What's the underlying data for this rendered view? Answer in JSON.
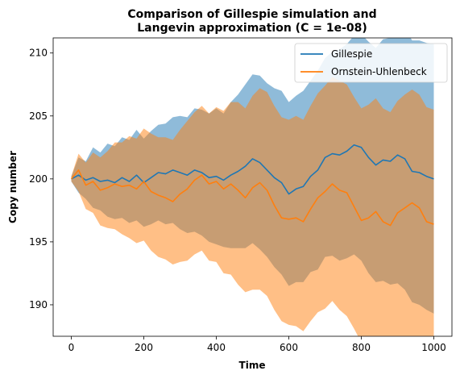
{
  "chart_data": {
    "type": "line",
    "title_line1": "Comparison of Gillespie simulation and",
    "title_line2": "Langevin approximation (C = 1e-08)",
    "xlabel": "Time",
    "ylabel": "Copy number",
    "xlim": [
      -50,
      1050
    ],
    "ylim": [
      187.5,
      211.2
    ],
    "xticks": [
      0,
      200,
      400,
      600,
      800,
      1000
    ],
    "yticks": [
      190,
      195,
      200,
      205,
      210
    ],
    "legend_position": "top-right",
    "grid": false,
    "series": [
      {
        "name": "Gillespie",
        "color": "#1f77b4",
        "band_color": "#1f77b4",
        "band_opacity": 0.5,
        "x": [
          0,
          20,
          40,
          60,
          80,
          100,
          120,
          140,
          160,
          180,
          200,
          220,
          240,
          260,
          280,
          300,
          320,
          340,
          360,
          380,
          400,
          420,
          440,
          460,
          480,
          500,
          520,
          540,
          560,
          580,
          600,
          620,
          640,
          660,
          680,
          700,
          720,
          740,
          760,
          780,
          800,
          820,
          840,
          860,
          880,
          900,
          920,
          940,
          960,
          980,
          1000
        ],
        "mean": [
          200.0,
          200.3,
          199.9,
          200.1,
          199.8,
          199.9,
          199.7,
          200.1,
          199.8,
          200.3,
          199.7,
          200.1,
          200.5,
          200.4,
          200.7,
          200.5,
          200.3,
          200.7,
          200.5,
          200.1,
          200.2,
          199.9,
          200.3,
          200.6,
          201.0,
          201.6,
          201.3,
          200.7,
          200.1,
          199.7,
          198.8,
          199.2,
          199.4,
          200.2,
          200.7,
          201.7,
          202.0,
          201.9,
          202.2,
          202.7,
          202.5,
          201.7,
          201.1,
          201.5,
          201.4,
          201.9,
          201.6,
          200.6,
          200.5,
          200.2,
          200.0
        ],
        "lower": [
          199.8,
          198.9,
          198.4,
          197.7,
          197.5,
          197.0,
          196.8,
          196.9,
          196.5,
          196.7,
          196.2,
          196.4,
          196.7,
          196.4,
          196.5,
          196.0,
          195.7,
          195.8,
          195.5,
          195.0,
          194.8,
          194.6,
          194.5,
          194.5,
          194.5,
          194.9,
          194.4,
          193.8,
          193.0,
          192.4,
          191.5,
          191.8,
          191.8,
          192.6,
          192.8,
          193.8,
          193.9,
          193.5,
          193.7,
          194.0,
          193.5,
          192.5,
          191.8,
          191.9,
          191.6,
          191.7,
          191.2,
          190.2,
          190.0,
          189.6,
          189.3
        ],
        "upper": [
          200.2,
          201.7,
          201.4,
          202.5,
          202.1,
          202.8,
          202.6,
          203.3,
          203.1,
          203.9,
          203.2,
          203.8,
          204.3,
          204.4,
          204.9,
          205.0,
          204.9,
          205.6,
          205.5,
          205.2,
          205.6,
          205.2,
          206.1,
          206.7,
          207.5,
          208.3,
          208.2,
          207.6,
          207.2,
          207.0,
          206.1,
          206.6,
          207.0,
          207.8,
          208.6,
          209.6,
          210.1,
          210.3,
          210.7,
          211.4,
          211.5,
          210.9,
          210.4,
          211.1,
          211.2,
          212.1,
          212.0,
          211.0,
          211.0,
          210.8,
          210.7
        ]
      },
      {
        "name": "Ornstein-Uhlenbeck",
        "color": "#ff7f0e",
        "band_color": "#ff7f0e",
        "band_opacity": 0.5,
        "x": [
          0,
          20,
          40,
          60,
          80,
          100,
          120,
          140,
          160,
          180,
          200,
          220,
          240,
          260,
          280,
          300,
          320,
          340,
          360,
          380,
          400,
          420,
          440,
          460,
          480,
          500,
          520,
          540,
          560,
          580,
          600,
          620,
          640,
          660,
          680,
          700,
          720,
          740,
          760,
          780,
          800,
          820,
          840,
          860,
          880,
          900,
          920,
          940,
          960,
          980,
          1000
        ],
        "mean": [
          200.0,
          200.7,
          199.5,
          199.8,
          199.1,
          199.3,
          199.6,
          199.4,
          199.5,
          199.2,
          199.8,
          199.0,
          198.7,
          198.5,
          198.2,
          198.8,
          199.2,
          199.9,
          200.3,
          199.6,
          199.8,
          199.2,
          199.6,
          199.1,
          198.5,
          199.3,
          199.7,
          199.1,
          197.9,
          196.9,
          196.8,
          196.9,
          196.6,
          197.6,
          198.5,
          199.0,
          199.6,
          199.1,
          198.9,
          197.8,
          196.7,
          196.9,
          197.4,
          196.6,
          196.3,
          197.3,
          197.7,
          198.1,
          197.7,
          196.6,
          196.4
        ],
        "lower": [
          199.8,
          199.0,
          197.6,
          197.3,
          196.3,
          196.1,
          196.0,
          195.6,
          195.3,
          194.9,
          195.1,
          194.3,
          193.8,
          193.6,
          193.2,
          193.4,
          193.5,
          194.0,
          194.3,
          193.5,
          193.4,
          192.5,
          192.4,
          191.6,
          191.0,
          191.2,
          191.2,
          190.7,
          189.6,
          188.7,
          188.4,
          188.3,
          187.9,
          188.7,
          189.4,
          189.7,
          190.3,
          189.6,
          189.1,
          188.1,
          187.0,
          186.8,
          187.0,
          186.1,
          185.6,
          186.1,
          186.6,
          186.8,
          186.3,
          185.3,
          184.9
        ],
        "upper": [
          200.2,
          202.0,
          201.3,
          202.1,
          201.7,
          202.2,
          202.9,
          202.9,
          203.4,
          203.2,
          204.0,
          203.6,
          203.3,
          203.3,
          203.1,
          203.9,
          204.6,
          205.3,
          205.8,
          205.2,
          205.7,
          205.4,
          206.1,
          206.1,
          205.6,
          206.6,
          207.2,
          206.9,
          205.8,
          204.9,
          204.7,
          205.0,
          204.7,
          205.8,
          206.8,
          207.4,
          208.1,
          207.8,
          207.5,
          206.5,
          205.6,
          205.9,
          206.4,
          205.6,
          205.3,
          206.2,
          206.7,
          207.1,
          206.7,
          205.7,
          205.5
        ]
      }
    ]
  }
}
